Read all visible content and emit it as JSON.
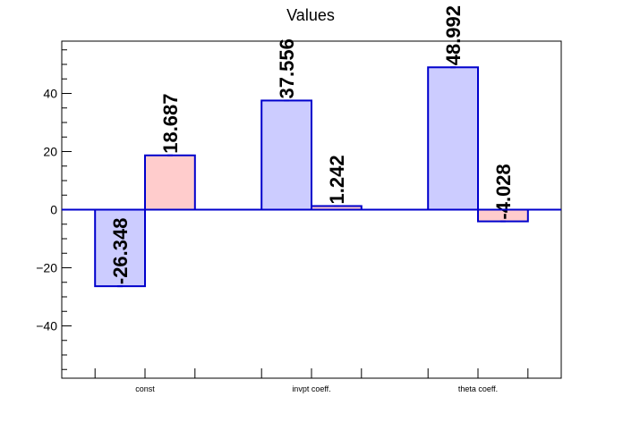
{
  "chart_data": {
    "type": "bar",
    "title": "Values",
    "categories": [
      "const",
      "invpt coeff.",
      "theta coeff."
    ],
    "series": [
      {
        "values": [
          -26.348,
          37.556,
          48.992
        ],
        "color": "#ccccff"
      },
      {
        "values": [
          18.687,
          1.242,
          -4.028
        ],
        "color": "#ffcccc"
      }
    ],
    "value_labels": [
      [
        "-26.348",
        "37.556",
        "48.992"
      ],
      [
        "18.687",
        "1.242",
        "-4.028"
      ]
    ],
    "bar_outline_color": "#0000cc",
    "ylim": [
      -58,
      58
    ],
    "yticks": [
      -40,
      -20,
      0,
      20,
      40
    ],
    "ytick_labels": [
      "−40",
      "−20",
      "0",
      "20",
      "40"
    ],
    "xlabel": "",
    "ylabel": "",
    "grid": false,
    "zero_line": true
  }
}
